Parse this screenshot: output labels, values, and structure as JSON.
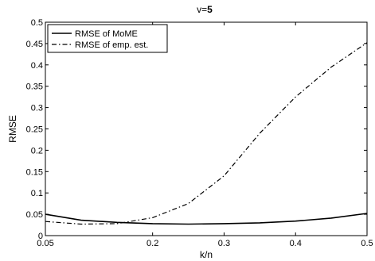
{
  "chart_data": {
    "type": "line",
    "title_prefix": "v=",
    "title_value": "5",
    "xlabel": "k/n",
    "ylabel": "RMSE",
    "xlim": [
      0.05,
      0.5
    ],
    "ylim": [
      0,
      0.5
    ],
    "xticks": [
      0.05,
      0.2,
      0.3,
      0.4,
      0.5
    ],
    "xtick_labels": [
      "0.05",
      "0.2",
      "0.3",
      "0.4",
      "0.5"
    ],
    "yticks": [
      0,
      0.05,
      0.1,
      0.15,
      0.2,
      0.25,
      0.3,
      0.35,
      0.4,
      0.45,
      0.5
    ],
    "ytick_labels": [
      "0",
      "0.05",
      "0.1",
      "0.15",
      "0.2",
      "0.25",
      "0.3",
      "0.35",
      "0.4",
      "0.45",
      "0.5"
    ],
    "grid": false,
    "legend_position": "top-left",
    "series": [
      {
        "name": "RMSE of MoME",
        "style": "solid",
        "color": "#000000",
        "x": [
          0.05,
          0.1,
          0.15,
          0.2,
          0.25,
          0.3,
          0.35,
          0.4,
          0.45,
          0.5
        ],
        "y": [
          0.05,
          0.036,
          0.031,
          0.028,
          0.027,
          0.028,
          0.03,
          0.034,
          0.041,
          0.052
        ]
      },
      {
        "name": "RMSE of emp. est.",
        "style": "dashdot",
        "color": "#000000",
        "x": [
          0.05,
          0.1,
          0.15,
          0.2,
          0.25,
          0.3,
          0.35,
          0.4,
          0.45,
          0.5
        ],
        "y": [
          0.033,
          0.027,
          0.028,
          0.042,
          0.075,
          0.14,
          0.24,
          0.325,
          0.395,
          0.452
        ]
      }
    ]
  }
}
